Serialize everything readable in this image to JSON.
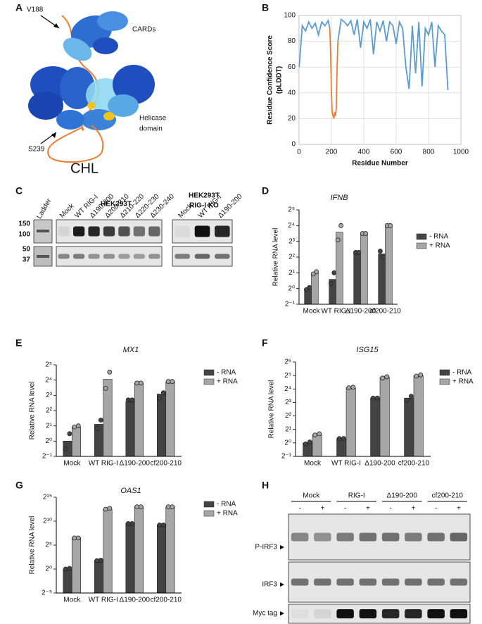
{
  "panels": {
    "a": "A",
    "b": "B",
    "c": "C",
    "d": "D",
    "e": "E",
    "f": "F",
    "g": "G",
    "h": "H"
  },
  "structure": {
    "labels": {
      "v188": "V188",
      "cards": "CARDs",
      "helicase": [
        "Helicase",
        "domain"
      ],
      "s239": "S239",
      "chl": "CHL"
    }
  },
  "blot_c": {
    "ladder": "Ladder",
    "markers": [
      "150",
      "100",
      "50",
      "37"
    ],
    "cell_line_1": "HEK293T",
    "cell_line_2": [
      "HEK293T",
      "RIG-I KO"
    ],
    "lanes_1": [
      "Mock",
      "WT RIG-I",
      "Δ190-200",
      "Δ200-210",
      "Δ210-220",
      "Δ220-230",
      "Δ230-240"
    ],
    "lanes_2": [
      "Mock",
      "WT RIG-I",
      "Δ190-200"
    ]
  },
  "blot_h": {
    "groups": [
      "Mock",
      "RIG-I",
      "Δ190-200",
      "cf200-210"
    ],
    "signs": [
      "-",
      "+"
    ],
    "rows": [
      "P-IRF3",
      "IRF3",
      "Myc tag"
    ]
  },
  "chart_data": [
    {
      "type": "line",
      "x": [
        1,
        20,
        40,
        60,
        80,
        100,
        120,
        140,
        160,
        180,
        190,
        195,
        200,
        205,
        210,
        215,
        220,
        225,
        230,
        235,
        240,
        260,
        280,
        300,
        320,
        340,
        360,
        380,
        400,
        420,
        440,
        460,
        480,
        500,
        520,
        540,
        560,
        580,
        600,
        620,
        640,
        660,
        680,
        700,
        720,
        740,
        760,
        780,
        800,
        820,
        840,
        860,
        880,
        900,
        920
      ],
      "series": [
        {
          "color": "#5b9bd5",
          "values": [
            60,
            92,
            88,
            95,
            90,
            94,
            85,
            95,
            92,
            96,
            90,
            null,
            null,
            null,
            null,
            null,
            null,
            null,
            null,
            null,
            80,
            97,
            95,
            92,
            96,
            85,
            97,
            75,
            95,
            90,
            97,
            70,
            95,
            88,
            96,
            80,
            95,
            92,
            78,
            95,
            90,
            60,
            43,
            92,
            55,
            95,
            45,
            90,
            85,
            95,
            60,
            92,
            88,
            85,
            42
          ]
        },
        {
          "color": "#ed7d31",
          "values": [
            null,
            null,
            null,
            null,
            null,
            null,
            null,
            null,
            null,
            null,
            90,
            70,
            40,
            25,
            22,
            20,
            25,
            22,
            28,
            60,
            80,
            null,
            null,
            null,
            null,
            null,
            null,
            null,
            null,
            null,
            null,
            null,
            null,
            null,
            null,
            null,
            null,
            null,
            null,
            null,
            null,
            null,
            null,
            null,
            null,
            null,
            null,
            null,
            null,
            null,
            null,
            null,
            null,
            null,
            null
          ]
        }
      ],
      "xlim": [
        0,
        1000
      ],
      "xticks": [
        0,
        200,
        400,
        600,
        800,
        1000
      ],
      "ylim": [
        0,
        100
      ],
      "yticks": [
        0,
        20,
        40,
        60,
        80,
        100
      ],
      "x_label": "Residue Number",
      "y_label": [
        "Residue Confidence Score",
        "(pLDDT)"
      ],
      "grid": true
    },
    {
      "type": "bar",
      "title": "IFNB",
      "y_label": "Relative RNA level",
      "log_base": 2,
      "legend": "right",
      "categories": [
        "Mock",
        "WT RIG-I",
        "Δ190-200",
        "cf200-210"
      ],
      "ylim": [
        0.5,
        32
      ],
      "yticks": [
        {
          "value": 0.5,
          "label": "2⁻¹"
        },
        {
          "value": 1,
          "label": "2⁰"
        },
        {
          "value": 2,
          "label": "2¹"
        },
        {
          "value": 4,
          "label": "2²"
        },
        {
          "value": 8,
          "label": "2³"
        },
        {
          "value": 16,
          "label": "2⁴"
        },
        {
          "value": 32,
          "label": "2⁵"
        }
      ],
      "series": [
        {
          "name": "- RNA",
          "color": "#444444",
          "values": [
            1,
            1.5,
            4.9,
            4.6
          ],
          "replicates": [
            [
              0.95,
              1.05
            ],
            [
              1.25,
              2
            ],
            [
              4.9,
              4.9
            ],
            [
              5.2,
              4
            ]
          ]
        },
        {
          "name": "+ RNA",
          "color": "#a6a6a6",
          "values": [
            2,
            12,
            11.3,
            16
          ],
          "replicates": [
            [
              1.9,
              2.1
            ],
            [
              8.5,
              16
            ],
            [
              11.3,
              11.3
            ],
            [
              16,
              16
            ]
          ]
        }
      ]
    },
    {
      "type": "bar",
      "title": "MX1",
      "y_label": "Relative RNA level",
      "log_base": 2,
      "legend": "right",
      "categories": [
        "Mock",
        "WT RIG-I",
        "Δ190-200",
        "cf200-210"
      ],
      "ylim": [
        0.5,
        32
      ],
      "yticks": [
        {
          "value": 0.5,
          "label": "2⁻¹"
        },
        {
          "value": 1,
          "label": "2⁰"
        },
        {
          "value": 2,
          "label": "2¹"
        },
        {
          "value": 4,
          "label": "2²"
        },
        {
          "value": 8,
          "label": "2³"
        },
        {
          "value": 16,
          "label": "2⁴"
        },
        {
          "value": 32,
          "label": "2⁵"
        }
      ],
      "series": [
        {
          "name": "- RNA",
          "color": "#444444",
          "values": [
            1,
            2.15,
            6,
            8.5
          ],
          "replicates": [
            [
              0.7,
              1.4
            ],
            [
              1.8,
              2.6
            ],
            [
              6.5,
              6.5
            ],
            [
              7,
              9
            ]
          ]
        },
        {
          "name": "+ RNA",
          "color": "#a6a6a6",
          "values": [
            1.9,
            16.6,
            14,
            15
          ],
          "replicates": [
            [
              1.9,
              2
            ],
            [
              11,
              23
            ],
            [
              14,
              14
            ],
            [
              15,
              15
            ]
          ]
        }
      ]
    },
    {
      "type": "bar",
      "title": "ISG15",
      "y_label": "Relative RNA level",
      "log_base": 2,
      "legend": "right",
      "categories": [
        "Mock",
        "WT RIG-I",
        "Δ190-200",
        "cf200-210"
      ],
      "ylim": [
        0.5,
        64
      ],
      "yticks": [
        {
          "value": 0.5,
          "label": "2⁻¹"
        },
        {
          "value": 1,
          "label": "2⁰"
        },
        {
          "value": 2,
          "label": "2¹"
        },
        {
          "value": 4,
          "label": "2²"
        },
        {
          "value": 8,
          "label": "2³"
        },
        {
          "value": 16,
          "label": "2⁴"
        },
        {
          "value": 32,
          "label": "2⁵"
        },
        {
          "value": 64,
          "label": "2⁶"
        }
      ],
      "series": [
        {
          "name": "- RNA",
          "color": "#444444",
          "values": [
            1,
            1.25,
            10,
            10
          ],
          "replicates": [
            [
              0.95,
              1.05
            ],
            [
              1.25,
              1.25
            ],
            [
              10,
              10
            ],
            [
              9,
              11
            ]
          ]
        },
        {
          "name": "+ RNA",
          "color": "#a6a6a6",
          "values": [
            1.5,
            17,
            29,
            32
          ],
          "replicates": [
            [
              1.5,
              1.6
            ],
            [
              17,
              17.5
            ],
            [
              28,
              30
            ],
            [
              31,
              33
            ]
          ]
        }
      ]
    },
    {
      "type": "bar",
      "title": "OAS1",
      "y_label": "Relative RNA level",
      "log_base": 2,
      "legend": "right",
      "categories": [
        "Mock",
        "WT RIG-I",
        "Δ190-200",
        "cf200-210"
      ],
      "ylim": [
        0.03125,
        32768
      ],
      "yticks": [
        {
          "value": 0.03125,
          "label": "2⁻⁵"
        },
        {
          "value": 1,
          "label": "2⁰"
        },
        {
          "value": 32,
          "label": "2⁵"
        },
        {
          "value": 1024,
          "label": "2¹⁰"
        },
        {
          "value": 32768,
          "label": "2¹⁵"
        }
      ],
      "series": [
        {
          "name": "- RNA",
          "color": "#444444",
          "values": [
            1,
            3.5,
            724,
            588
          ],
          "replicates": [
            [
              1,
              1.1
            ],
            [
              3.4,
              3.6
            ],
            [
              724,
              724
            ],
            [
              588,
              588
            ]
          ]
        },
        {
          "name": "+ RNA",
          "color": "#a6a6a6",
          "values": [
            90,
            5800,
            8192,
            8192
          ],
          "replicates": [
            [
              90,
              90
            ],
            [
              5800,
              6500
            ],
            [
              8192,
              8192
            ],
            [
              8192,
              8192
            ]
          ]
        }
      ]
    }
  ]
}
